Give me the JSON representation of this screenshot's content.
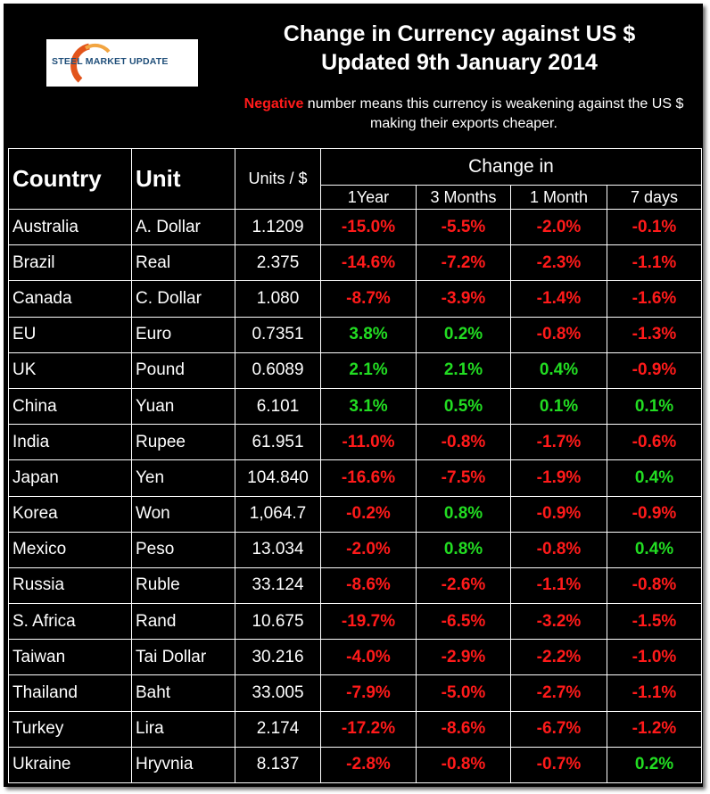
{
  "title_line1": "Change in Currency against US $",
  "title_line2": "Updated 9th January 2014",
  "logo_text": "STEEL MARKET UPDATE",
  "note": {
    "negative_word": "Negative",
    "rest": " number means this currency is weakening against the US $ making their exports cheaper."
  },
  "headers": {
    "country": "Country",
    "unit": "Unit",
    "units_per_dollar": "Units / $",
    "change_in": "Change in",
    "periods": [
      "1Year",
      "3 Months",
      "1 Month",
      "7 days"
    ]
  },
  "colors": {
    "negative": "#ff1a1a",
    "positive": "#22dd22",
    "background": "#000000"
  },
  "rows": [
    {
      "country": "Australia",
      "unit": "A. Dollar",
      "rate": "1.1209",
      "changes": [
        "-15.0%",
        "-5.5%",
        "-2.0%",
        "-0.1%"
      ]
    },
    {
      "country": "Brazil",
      "unit": "Real",
      "rate": "2.375",
      "changes": [
        "-14.6%",
        "-7.2%",
        "-2.3%",
        "-1.1%"
      ]
    },
    {
      "country": "Canada",
      "unit": "C. Dollar",
      "rate": "1.080",
      "changes": [
        "-8.7%",
        "-3.9%",
        "-1.4%",
        "-1.6%"
      ]
    },
    {
      "country": "EU",
      "unit": "Euro",
      "rate": "0.7351",
      "changes": [
        "3.8%",
        "0.2%",
        "-0.8%",
        "-1.3%"
      ]
    },
    {
      "country": "UK",
      "unit": "Pound",
      "rate": "0.6089",
      "changes": [
        "2.1%",
        "2.1%",
        "0.4%",
        "-0.9%"
      ]
    },
    {
      "country": "China",
      "unit": "Yuan",
      "rate": "6.101",
      "changes": [
        "3.1%",
        "0.5%",
        "0.1%",
        "0.1%"
      ]
    },
    {
      "country": "India",
      "unit": "Rupee",
      "rate": "61.951",
      "changes": [
        "-11.0%",
        "-0.8%",
        "-1.7%",
        "-0.6%"
      ]
    },
    {
      "country": "Japan",
      "unit": "Yen",
      "rate": "104.840",
      "changes": [
        "-16.6%",
        "-7.5%",
        "-1.9%",
        "0.4%"
      ]
    },
    {
      "country": "Korea",
      "unit": "Won",
      "rate": "1,064.7",
      "changes": [
        "-0.2%",
        "0.8%",
        "-0.9%",
        "-0.9%"
      ]
    },
    {
      "country": "Mexico",
      "unit": "Peso",
      "rate": "13.034",
      "changes": [
        "-2.0%",
        "0.8%",
        "-0.8%",
        "0.4%"
      ]
    },
    {
      "country": "Russia",
      "unit": "Ruble",
      "rate": "33.124",
      "changes": [
        "-8.6%",
        "-2.6%",
        "-1.1%",
        "-0.8%"
      ]
    },
    {
      "country": "S. Africa",
      "unit": "Rand",
      "rate": "10.675",
      "changes": [
        "-19.7%",
        "-6.5%",
        "-3.2%",
        "-1.5%"
      ]
    },
    {
      "country": "Taiwan",
      "unit": "Tai Dollar",
      "rate": "30.216",
      "changes": [
        "-4.0%",
        "-2.9%",
        "-2.2%",
        "-1.0%"
      ]
    },
    {
      "country": "Thailand",
      "unit": "Baht",
      "rate": "33.005",
      "changes": [
        "-7.9%",
        "-5.0%",
        "-2.7%",
        "-1.1%"
      ]
    },
    {
      "country": "Turkey",
      "unit": "Lira",
      "rate": "2.174",
      "changes": [
        "-17.2%",
        "-8.6%",
        "-6.7%",
        "-1.2%"
      ]
    },
    {
      "country": "Ukraine",
      "unit": "Hryvnia",
      "rate": "8.137",
      "changes": [
        "-2.8%",
        "-0.8%",
        "-0.7%",
        "0.2%"
      ]
    }
  ]
}
